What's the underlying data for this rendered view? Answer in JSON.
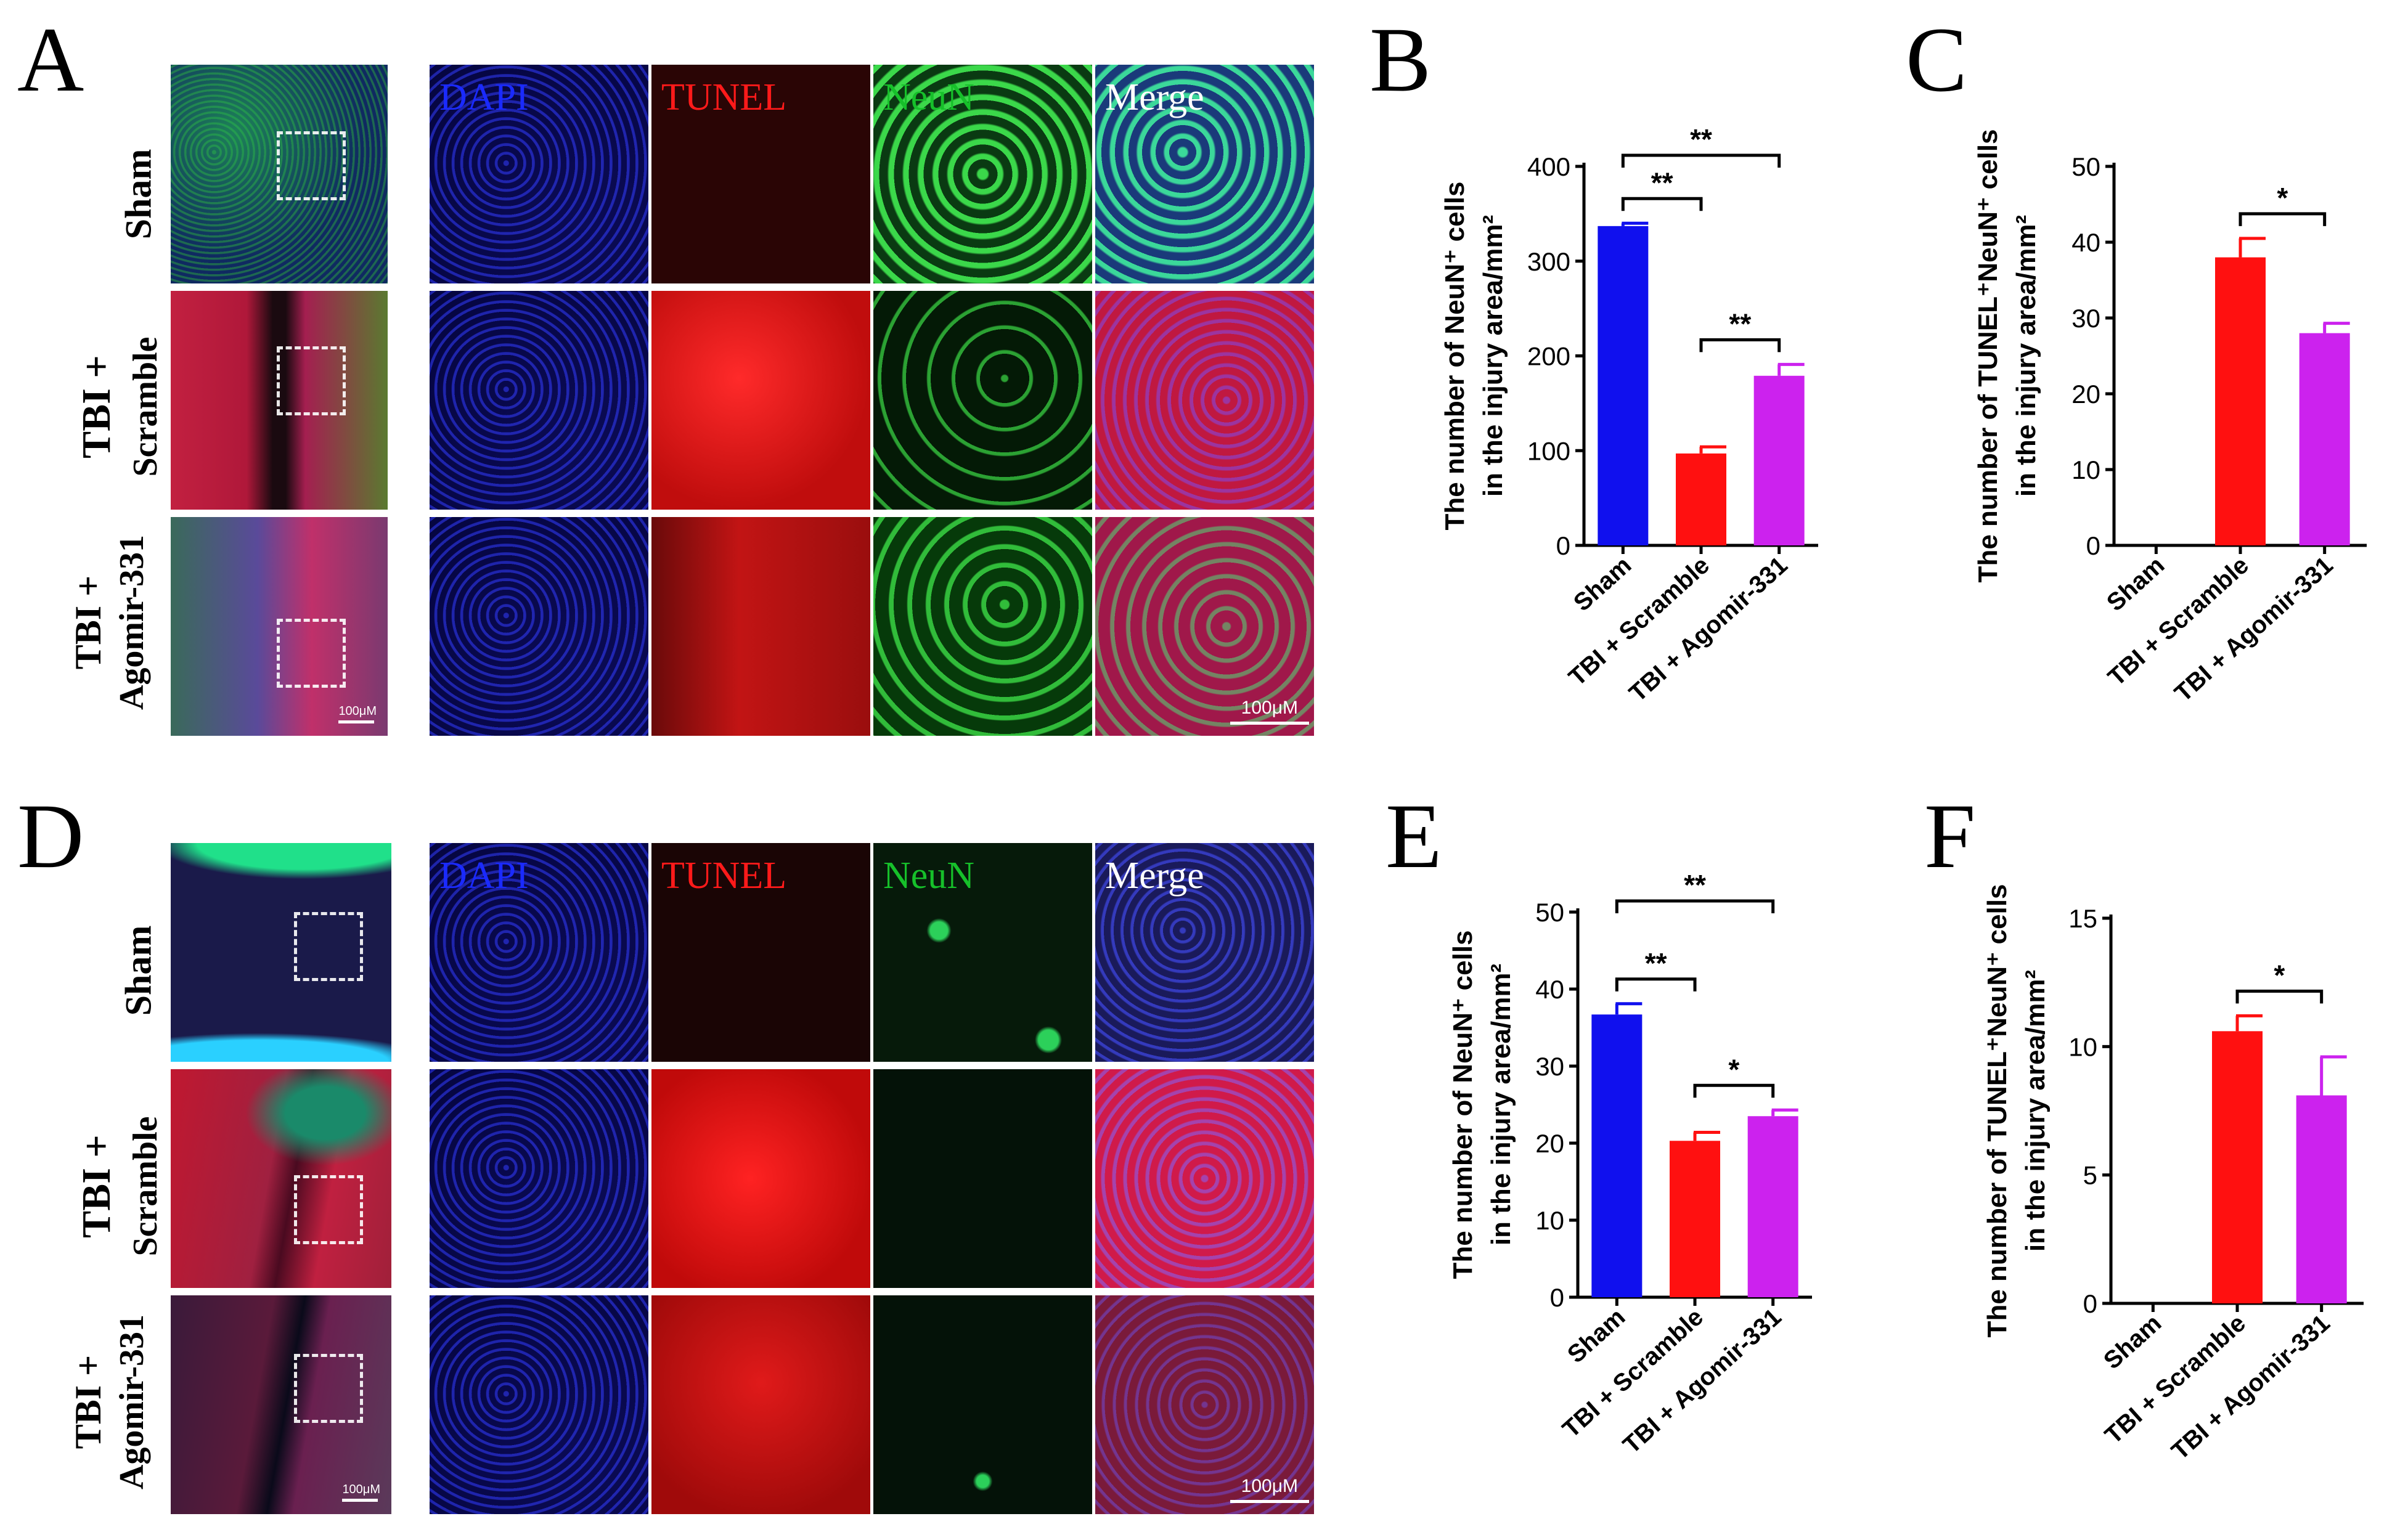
{
  "panels": {
    "A": "A",
    "B": "B",
    "C": "C",
    "D": "D",
    "E": "E",
    "F": "F"
  },
  "rows": {
    "sham": "Sham",
    "tbi_scramble": [
      "TBI +",
      "Scramble"
    ],
    "tbi_agomir": [
      "TBI +",
      "Agomir-331"
    ]
  },
  "channels": [
    "DAPI",
    "TUNEL",
    "NeuN",
    "Merge"
  ],
  "channel_colors": {
    "DAPI": "#1a2aff",
    "TUNEL": "#ff1a1a",
    "NeuN": "#16c02a",
    "Merge": "#ffffff"
  },
  "scale_bar": "100μM",
  "colors": {
    "sham": "#1010ee",
    "scramble": "#ff1010",
    "agomir": "#cc22ee"
  },
  "chart_data": [
    {
      "panel": "B",
      "type": "bar",
      "categories": [
        "Sham",
        "TBI + Scramble",
        "TBI + Agomir-331"
      ],
      "values": [
        337,
        97,
        179
      ],
      "errors": [
        3,
        7,
        12
      ],
      "ylim": [
        0,
        400
      ],
      "yticks": [
        0,
        100,
        200,
        300,
        400
      ],
      "ylabel": [
        "The number of NeuN⁺ cells",
        "in the injury area/mm²"
      ],
      "significance": [
        {
          "from": 0,
          "to": 2,
          "label": "**"
        },
        {
          "from": 0,
          "to": 1,
          "label": "**"
        },
        {
          "from": 1,
          "to": 2,
          "label": "**"
        }
      ]
    },
    {
      "panel": "C",
      "type": "bar",
      "categories": [
        "Sham",
        "TBI + Scramble",
        "TBI + Agomir-331"
      ],
      "values": [
        0,
        38,
        28
      ],
      "errors": [
        0,
        2.5,
        1.3
      ],
      "ylim": [
        0,
        50
      ],
      "yticks": [
        0,
        10,
        20,
        30,
        40,
        50
      ],
      "ylabel": [
        "The number of TUNEL⁺NeuN⁺ cells",
        "in the injury area/mm²"
      ],
      "significance": [
        {
          "from": 1,
          "to": 2,
          "label": "*"
        }
      ]
    },
    {
      "panel": "E",
      "type": "bar",
      "categories": [
        "Sham",
        "TBI + Scramble",
        "TBI + Agomir-331"
      ],
      "values": [
        36.7,
        20.3,
        23.5
      ],
      "errors": [
        1.4,
        1.1,
        0.8
      ],
      "ylim": [
        0,
        50
      ],
      "yticks": [
        0,
        10,
        20,
        30,
        40,
        50
      ],
      "ylabel": [
        "The number of NeuN⁺ cells",
        "in the injury area/mm²"
      ],
      "significance": [
        {
          "from": 0,
          "to": 2,
          "label": "**"
        },
        {
          "from": 0,
          "to": 1,
          "label": "**"
        },
        {
          "from": 1,
          "to": 2,
          "label": "*"
        }
      ]
    },
    {
      "panel": "F",
      "type": "bar",
      "categories": [
        "Sham",
        "TBI + Scramble",
        "TBI + Agomir-331"
      ],
      "values": [
        0,
        10.6,
        8.1
      ],
      "errors": [
        0,
        0.6,
        1.5
      ],
      "ylim": [
        0,
        15
      ],
      "yticks": [
        0,
        5,
        10,
        15
      ],
      "ylabel": [
        "The number of TUNEL⁺NeuN⁺ cells",
        "in the injury area/mm²"
      ],
      "significance": [
        {
          "from": 1,
          "to": 2,
          "label": "*"
        }
      ]
    }
  ]
}
